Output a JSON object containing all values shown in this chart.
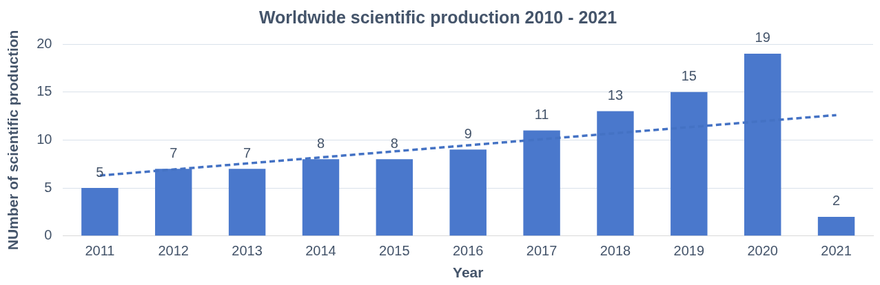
{
  "chart_data": {
    "type": "bar",
    "title": "Worldwide scientific production 2010 - 2021",
    "xlabel": "Year",
    "ylabel": "NUmber of scientific production",
    "categories": [
      "2011",
      "2012",
      "2013",
      "2014",
      "2015",
      "2016",
      "2017",
      "2018",
      "2019",
      "2020",
      "2021"
    ],
    "series": [
      {
        "color": "#4a78cc",
        "values": [
          5,
          7,
          7,
          8,
          8,
          9,
          11,
          13,
          15,
          19,
          2
        ],
        "value_labels": [
          "5",
          "7",
          "7",
          "8",
          "8",
          "9",
          "11",
          "13",
          "15",
          "19",
          "2"
        ]
      },
      {
        "type": "line",
        "color": "#4472c4",
        "line_style": "dashed",
        "values": [
          6.3,
          null,
          null,
          null,
          null,
          null,
          null,
          null,
          null,
          null,
          12.6
        ]
      }
    ],
    "ylim": [
      0,
      20
    ],
    "yticks": [
      0,
      5,
      10,
      15,
      20
    ],
    "grid": "y",
    "legend": false
  }
}
